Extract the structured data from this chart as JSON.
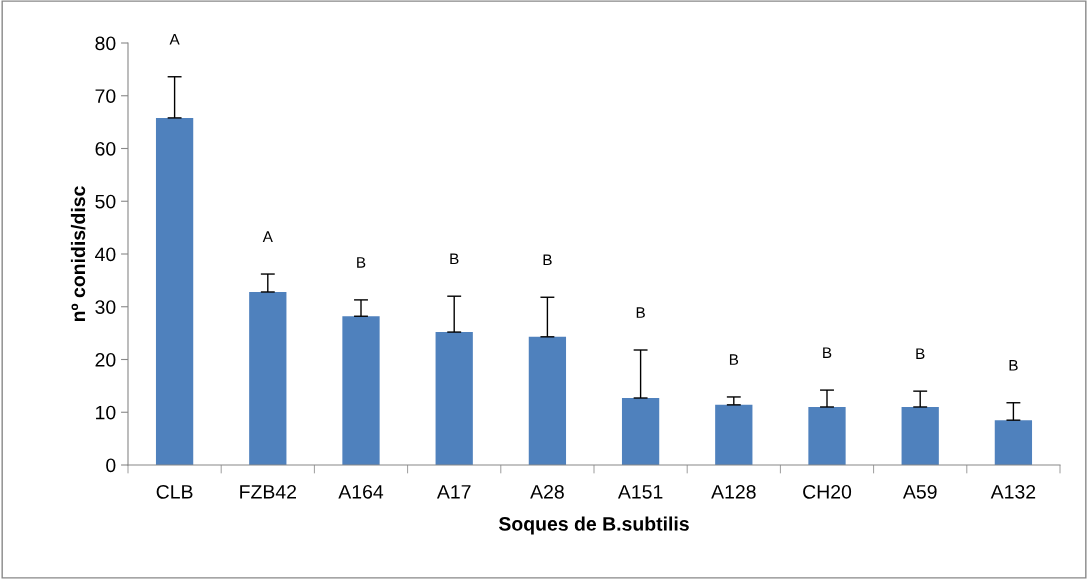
{
  "chart_data": {
    "type": "bar",
    "xlabel": "Soques de B.subtilis",
    "ylabel": "nº conidis/disc",
    "categories": [
      "CLB",
      "FZB42",
      "A164",
      "A17",
      "A28",
      "A151",
      "A128",
      "CH20",
      "A59",
      "A132"
    ],
    "values": [
      65.8,
      32.8,
      28.2,
      25.2,
      24.3,
      12.7,
      11.4,
      11.0,
      11.0,
      8.5
    ],
    "errors": [
      [
        65.8,
        73.6
      ],
      [
        32.8,
        36.2
      ],
      [
        28.2,
        31.3
      ],
      [
        25.2,
        32.0
      ],
      [
        24.3,
        31.8
      ],
      [
        12.7,
        21.8
      ],
      [
        11.4,
        12.9
      ],
      [
        11.0,
        14.2
      ],
      [
        11.0,
        14.0
      ],
      [
        8.5,
        11.8
      ]
    ],
    "color": "#4f81bd",
    "ylim": [
      0,
      80
    ],
    "yticks": [
      0,
      10,
      20,
      30,
      40,
      50,
      60,
      70,
      80
    ],
    "grid": false,
    "annotations": [
      "A",
      "A",
      "B",
      "B",
      "B",
      "B",
      "B",
      "B",
      "B",
      "B"
    ]
  }
}
